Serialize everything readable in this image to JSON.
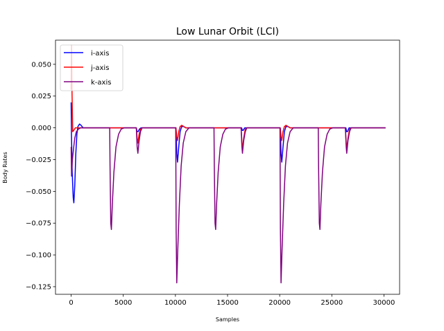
{
  "chart_data": {
    "type": "line",
    "title": "Low Lunar Orbit (LCI)",
    "xlabel": "Samples",
    "ylabel": "Body Rates",
    "xlim": [
      -1500,
      31500
    ],
    "ylim": [
      -0.131,
      0.069
    ],
    "xticks": [
      0,
      5000,
      10000,
      15000,
      20000,
      25000,
      30000
    ],
    "xtick_labels": [
      "0",
      "5000",
      "10000",
      "15000",
      "20000",
      "25000",
      "30000"
    ],
    "yticks": [
      0.05,
      0.025,
      0.0,
      -0.025,
      -0.05,
      -0.075,
      -0.1,
      -0.125
    ],
    "ytick_labels": [
      "0.050",
      "0.025",
      "0.000",
      "−0.025",
      "−0.050",
      "−0.075",
      "−0.100",
      "−0.125"
    ],
    "grid": false,
    "legend_position": "top-left",
    "series": [
      {
        "name": "i-axis",
        "color": "#0000ff",
        "points": [
          [
            0,
            0.02
          ],
          [
            30,
            -0.005
          ],
          [
            100,
            -0.035
          ],
          [
            200,
            -0.055
          ],
          [
            260,
            -0.059
          ],
          [
            350,
            -0.045
          ],
          [
            450,
            -0.02
          ],
          [
            550,
            -0.005
          ],
          [
            650,
            0.001
          ],
          [
            800,
            0.003
          ],
          [
            950,
            0.002
          ],
          [
            1150,
            0.0
          ],
          [
            6250,
            0.0
          ],
          [
            6330,
            -0.003
          ],
          [
            6420,
            -0.003
          ],
          [
            6550,
            -0.001
          ],
          [
            6700,
            0.0
          ],
          [
            10050,
            0.0
          ],
          [
            10130,
            -0.02
          ],
          [
            10200,
            -0.027
          ],
          [
            10320,
            -0.015
          ],
          [
            10450,
            -0.003
          ],
          [
            10600,
            0.001
          ],
          [
            10800,
            0.001
          ],
          [
            11000,
            0.0
          ],
          [
            16350,
            0.0
          ],
          [
            16420,
            -0.002
          ],
          [
            16500,
            -0.002
          ],
          [
            16650,
            0.0
          ],
          [
            20050,
            0.0
          ],
          [
            20130,
            -0.02
          ],
          [
            20200,
            -0.027
          ],
          [
            20320,
            -0.015
          ],
          [
            20450,
            -0.003
          ],
          [
            20600,
            0.001
          ],
          [
            20800,
            0.001
          ],
          [
            21000,
            0.0
          ],
          [
            26350,
            0.0
          ],
          [
            26420,
            -0.003
          ],
          [
            26500,
            -0.003
          ],
          [
            26650,
            0.0
          ],
          [
            30150,
            0.0
          ]
        ]
      },
      {
        "name": "j-axis",
        "color": "#ff0000",
        "points": [
          [
            0,
            0.03
          ],
          [
            40,
            0.065
          ],
          [
            80,
            0.03
          ],
          [
            150,
            -0.003
          ],
          [
            250,
            -0.002
          ],
          [
            400,
            0.0
          ],
          [
            6250,
            0.0
          ],
          [
            6330,
            -0.008
          ],
          [
            6400,
            -0.012
          ],
          [
            6520,
            -0.005
          ],
          [
            6650,
            -0.001
          ],
          [
            6800,
            0.0
          ],
          [
            10050,
            0.0
          ],
          [
            10130,
            -0.007
          ],
          [
            10200,
            -0.01
          ],
          [
            10320,
            -0.003
          ],
          [
            10450,
            0.001
          ],
          [
            10600,
            0.002
          ],
          [
            10800,
            0.001
          ],
          [
            11000,
            0.0
          ],
          [
            16300,
            0.0
          ],
          [
            16380,
            -0.012
          ],
          [
            16430,
            -0.017
          ],
          [
            16550,
            -0.008
          ],
          [
            16700,
            -0.001
          ],
          [
            16850,
            0.0
          ],
          [
            20050,
            0.0
          ],
          [
            20130,
            -0.007
          ],
          [
            20200,
            -0.01
          ],
          [
            20320,
            -0.003
          ],
          [
            20450,
            0.001
          ],
          [
            20600,
            0.002
          ],
          [
            20800,
            0.001
          ],
          [
            21000,
            0.0
          ],
          [
            26300,
            0.0
          ],
          [
            26380,
            -0.012
          ],
          [
            26430,
            -0.017
          ],
          [
            26550,
            -0.008
          ],
          [
            26700,
            -0.001
          ],
          [
            26850,
            0.0
          ],
          [
            30150,
            0.0
          ]
        ]
      },
      {
        "name": "k-axis",
        "color": "#800080",
        "points": [
          [
            0,
            -0.015
          ],
          [
            40,
            -0.038
          ],
          [
            120,
            -0.025
          ],
          [
            250,
            -0.015
          ],
          [
            350,
            -0.008
          ],
          [
            500,
            -0.003
          ],
          [
            700,
            -0.001
          ],
          [
            900,
            0.0
          ],
          [
            3700,
            0.0
          ],
          [
            3730,
            -0.03
          ],
          [
            3800,
            -0.075
          ],
          [
            3860,
            -0.08
          ],
          [
            3950,
            -0.06
          ],
          [
            4100,
            -0.035
          ],
          [
            4300,
            -0.015
          ],
          [
            4550,
            -0.005
          ],
          [
            4800,
            -0.001
          ],
          [
            5100,
            0.0
          ],
          [
            6250,
            0.0
          ],
          [
            6330,
            -0.015
          ],
          [
            6400,
            -0.02
          ],
          [
            6520,
            -0.01
          ],
          [
            6650,
            -0.003
          ],
          [
            6800,
            0.0
          ],
          [
            10030,
            0.0
          ],
          [
            10070,
            -0.08
          ],
          [
            10130,
            -0.122
          ],
          [
            10230,
            -0.095
          ],
          [
            10380,
            -0.06
          ],
          [
            10550,
            -0.03
          ],
          [
            10750,
            -0.012
          ],
          [
            11000,
            -0.003
          ],
          [
            11300,
            0.0
          ],
          [
            13700,
            0.0
          ],
          [
            13730,
            -0.03
          ],
          [
            13800,
            -0.075
          ],
          [
            13860,
            -0.08
          ],
          [
            13950,
            -0.06
          ],
          [
            14100,
            -0.035
          ],
          [
            14300,
            -0.015
          ],
          [
            14550,
            -0.005
          ],
          [
            14800,
            -0.001
          ],
          [
            15100,
            0.0
          ],
          [
            16300,
            0.0
          ],
          [
            16380,
            -0.015
          ],
          [
            16430,
            -0.02
          ],
          [
            16550,
            -0.01
          ],
          [
            16700,
            -0.003
          ],
          [
            16850,
            0.0
          ],
          [
            20030,
            0.0
          ],
          [
            20070,
            -0.08
          ],
          [
            20130,
            -0.122
          ],
          [
            20230,
            -0.095
          ],
          [
            20380,
            -0.06
          ],
          [
            20550,
            -0.03
          ],
          [
            20750,
            -0.012
          ],
          [
            21000,
            -0.003
          ],
          [
            21300,
            0.0
          ],
          [
            23700,
            0.0
          ],
          [
            23730,
            -0.03
          ],
          [
            23800,
            -0.075
          ],
          [
            23860,
            -0.08
          ],
          [
            23950,
            -0.06
          ],
          [
            24100,
            -0.035
          ],
          [
            24300,
            -0.015
          ],
          [
            24550,
            -0.005
          ],
          [
            24800,
            -0.001
          ],
          [
            25100,
            0.0
          ],
          [
            26300,
            0.0
          ],
          [
            26380,
            -0.015
          ],
          [
            26430,
            -0.02
          ],
          [
            26550,
            -0.01
          ],
          [
            26700,
            -0.003
          ],
          [
            26850,
            0.0
          ],
          [
            30150,
            0.0
          ]
        ]
      }
    ]
  }
}
